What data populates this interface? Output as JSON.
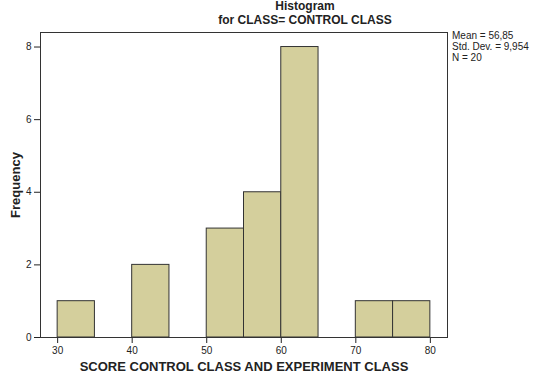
{
  "chart_data": {
    "type": "histogram",
    "title": "Histogram",
    "subtitle": "for CLASS= CONTROL CLASS",
    "x_label": "SCORE CONTROL CLASS AND EXPERIMENT CLASS",
    "y_label": "Frequency",
    "bins": [
      30,
      35,
      40,
      45,
      50,
      55,
      60,
      65,
      70,
      75,
      80
    ],
    "values": [
      1,
      0,
      2,
      0,
      3,
      4,
      8,
      0,
      1,
      1
    ],
    "color": "#d4cf9c",
    "xlim": [
      27.7,
      82.3
    ],
    "xticks": [
      30,
      40,
      50,
      60,
      70,
      80
    ],
    "ylim": [
      0,
      8.4
    ],
    "yticks": [
      0,
      2,
      4,
      6,
      8
    ],
    "annotations": [
      "Mean = 56,85",
      "Std. Dev. = 9,954",
      "N = 20"
    ],
    "grid": false
  }
}
